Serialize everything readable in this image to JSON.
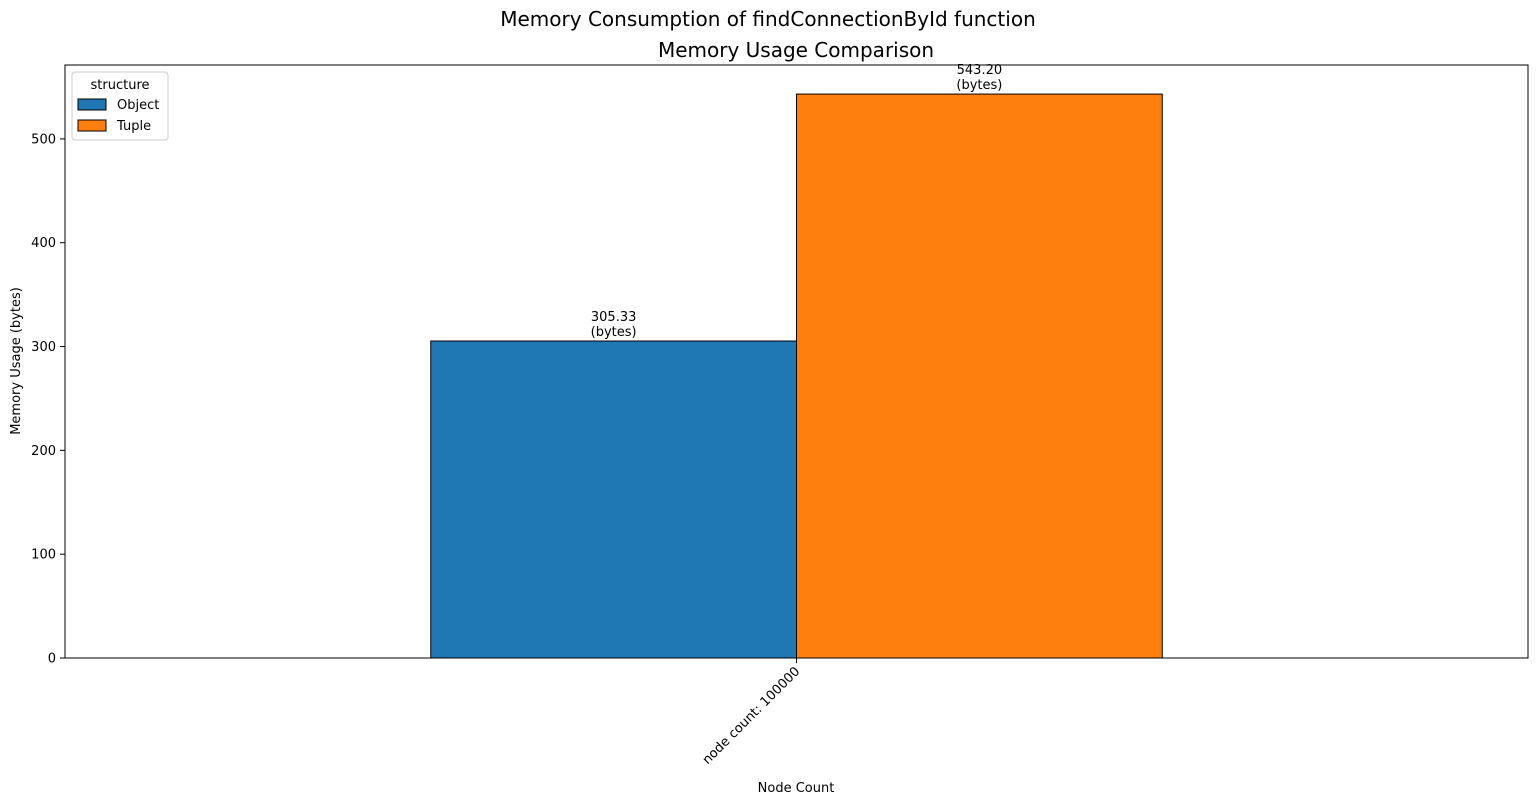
{
  "figure": {
    "suptitle": "Memory Consumption of findConnectionById function"
  },
  "chart_data": {
    "type": "bar",
    "title": "Memory Usage Comparison",
    "xlabel": "Node Count",
    "ylabel": "Memory Usage (bytes)",
    "categories": [
      "node count: 100000"
    ],
    "ylim": [
      0,
      571.2
    ],
    "yticks": [
      0,
      100,
      200,
      300,
      400,
      500
    ],
    "grid": false,
    "legend": {
      "title": "structure",
      "placement": "top-left"
    },
    "series": [
      {
        "name": "Object",
        "values": [
          305.33
        ],
        "color": "#1f77b4",
        "labels": [
          [
            "305.33",
            "(bytes)"
          ]
        ]
      },
      {
        "name": "Tuple",
        "values": [
          543.2
        ],
        "color": "#ff7f0e",
        "labels": [
          [
            "543.20",
            "(bytes)"
          ]
        ]
      }
    ]
  }
}
